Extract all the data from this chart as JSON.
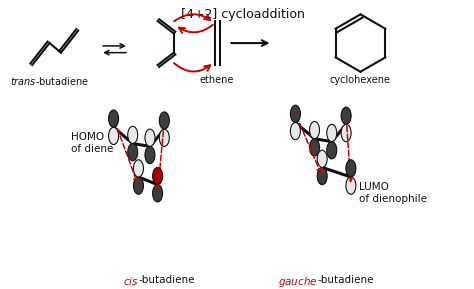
{
  "title": "[4+2] cycloaddition",
  "label_trans": "trans-butadiene",
  "label_ethene": "ethene",
  "label_cyclohexene": "cyclohexene",
  "label_homo": "HOMO\nof diene",
  "label_lumo": "LUMO\nof dienophile",
  "label_cis": "cis",
  "label_cis2": "-butadiene",
  "label_gauche": "gauche",
  "label_gauche2": "-butadiene",
  "bg_color": "#ffffff",
  "black": "#111111",
  "red": "#cc0000"
}
